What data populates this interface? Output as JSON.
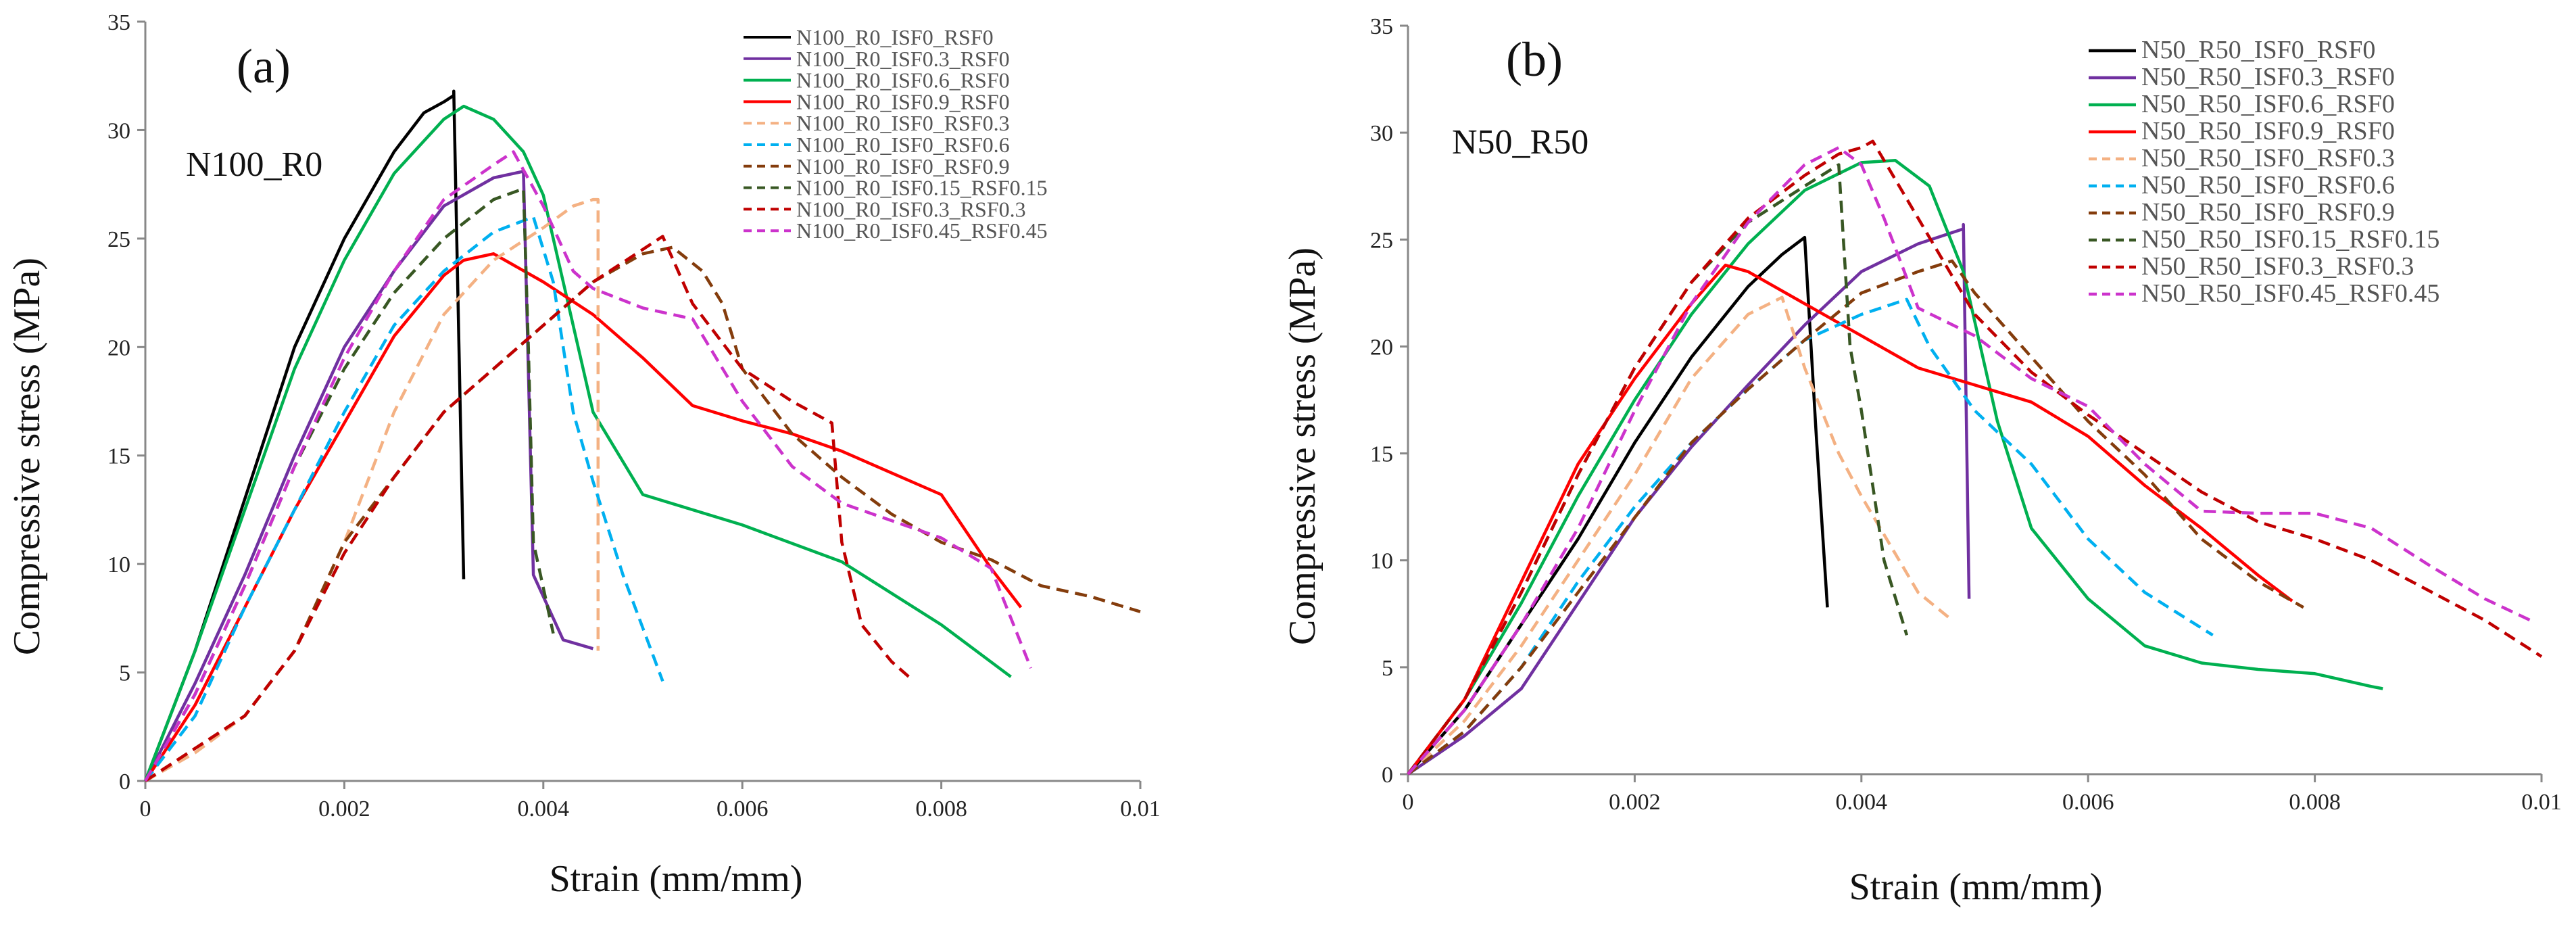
{
  "chart_data": [
    {
      "type": "line",
      "panel_label": "(a)",
      "group_label": "N100_R0",
      "xlabel": "Strain (mm/mm)",
      "ylabel": "Compressive stress (MPa)",
      "xlim": [
        0,
        0.01
      ],
      "ylim": [
        0,
        35
      ],
      "x_ticks": [
        0,
        0.002,
        0.004,
        0.006,
        0.008,
        0.01
      ],
      "x_tick_labels": [
        "0",
        "0.002",
        "0.004",
        "0.006",
        "0.008",
        "0.01"
      ],
      "y_ticks": [
        0,
        5,
        10,
        15,
        20,
        25,
        30,
        35
      ],
      "y_tick_labels": [
        "0",
        "5",
        "10",
        "15",
        "20",
        "25",
        "30",
        "35"
      ],
      "legend_position": "top-right",
      "series": [
        {
          "name": "N100_R0_ISF0_RSF0",
          "color": "#000000",
          "dash": "solid",
          "x": [
            0,
            0.0005,
            0.001,
            0.0015,
            0.002,
            0.0025,
            0.0028,
            0.003,
            0.0031,
            0.0031,
            0.0032
          ],
          "y": [
            0,
            6,
            13,
            20,
            25,
            29,
            30.8,
            31.3,
            31.6,
            31.8,
            9.3
          ]
        },
        {
          "name": "N100_R0_ISF0.3_RSF0",
          "color": "#7030A0",
          "dash": "solid",
          "x": [
            0,
            0.0005,
            0.001,
            0.0015,
            0.002,
            0.0025,
            0.003,
            0.0035,
            0.0038,
            0.0039,
            0.0042,
            0.0045
          ],
          "y": [
            0,
            4.5,
            9.5,
            15,
            20,
            23.5,
            26.5,
            27.8,
            28.1,
            9.5,
            6.5,
            6.1
          ]
        },
        {
          "name": "N100_R0_ISF0.6_RSF0",
          "color": "#00B050",
          "dash": "solid",
          "x": [
            0,
            0.0005,
            0.001,
            0.0015,
            0.002,
            0.0025,
            0.003,
            0.0032,
            0.0035,
            0.0038,
            0.004,
            0.0045,
            0.005,
            0.006,
            0.007,
            0.008,
            0.0087
          ],
          "y": [
            0,
            6,
            12.5,
            19,
            24,
            28,
            30.5,
            31.1,
            30.5,
            29,
            27,
            17,
            13.2,
            11.8,
            10.1,
            7.2,
            4.8
          ]
        },
        {
          "name": "N100_R0_ISF0.9_RSF0",
          "color": "#FF0000",
          "dash": "solid",
          "x": [
            0,
            0.0005,
            0.001,
            0.0015,
            0.002,
            0.0025,
            0.003,
            0.0032,
            0.0035,
            0.004,
            0.0045,
            0.005,
            0.0055,
            0.006,
            0.0065,
            0.007,
            0.0075,
            0.008,
            0.0085,
            0.0088
          ],
          "y": [
            0,
            3.5,
            8,
            12.5,
            16.5,
            20.5,
            23.3,
            24,
            24.3,
            23,
            21.5,
            19.5,
            17.3,
            16.6,
            16,
            15.2,
            14.2,
            13.2,
            9.8,
            8
          ]
        },
        {
          "name": "N100_R0_ISF0_RSF0.3",
          "color": "#F4B183",
          "dash": "dash",
          "x": [
            0,
            0.0005,
            0.001,
            0.0015,
            0.002,
            0.0025,
            0.003,
            0.0035,
            0.004,
            0.0043,
            0.0045,
            0.00455,
            0.00455
          ],
          "y": [
            0,
            1.3,
            3,
            6,
            11,
            17,
            21.5,
            24,
            25.5,
            26.5,
            26.8,
            26.8,
            6
          ]
        },
        {
          "name": "N100_R0_ISF0_RSF0.6",
          "color": "#00B0F0",
          "dash": "dash",
          "x": [
            0,
            0.0005,
            0.001,
            0.0015,
            0.002,
            0.0025,
            0.003,
            0.0035,
            0.0039,
            0.0041,
            0.0043,
            0.0045,
            0.0048,
            0.0052
          ],
          "y": [
            0,
            3,
            8,
            12.5,
            17,
            21,
            23.5,
            25.3,
            26,
            23,
            17,
            13.8,
            9.5,
            4.6
          ]
        },
        {
          "name": "N100_R0_ISF0_RSF0.9",
          "color": "#843C0C",
          "dash": "dash",
          "x": [
            0,
            0.0005,
            0.001,
            0.0015,
            0.002,
            0.0025,
            0.003,
            0.0035,
            0.004,
            0.0045,
            0.005,
            0.0053,
            0.0056,
            0.0058,
            0.006,
            0.0065,
            0.007,
            0.0075,
            0.008,
            0.0085,
            0.009,
            0.0095,
            0.01
          ],
          "y": [
            0,
            1.5,
            3,
            6,
            11,
            14,
            17,
            19,
            21,
            23,
            24.3,
            24.6,
            23.5,
            22,
            19,
            16,
            14,
            12.3,
            11,
            10.2,
            9,
            8.5,
            7.8
          ]
        },
        {
          "name": "N100_R0_ISF0.15_RSF0.15",
          "color": "#385723",
          "dash": "dash",
          "x": [
            0,
            0.0005,
            0.001,
            0.0015,
            0.002,
            0.0025,
            0.003,
            0.0035,
            0.0038,
            0.00385,
            0.0039,
            0.0041
          ],
          "y": [
            0,
            4,
            9,
            14.5,
            19,
            22.5,
            25,
            26.8,
            27.3,
            20,
            11,
            6.8
          ]
        },
        {
          "name": "N100_R0_ISF0.3_RSF0.3",
          "color": "#C00000",
          "dash": "dash",
          "x": [
            0,
            0.0005,
            0.001,
            0.0015,
            0.002,
            0.0025,
            0.003,
            0.0035,
            0.004,
            0.0045,
            0.005,
            0.0052,
            0.0055,
            0.006,
            0.0065,
            0.0069,
            0.007,
            0.0072,
            0.0075,
            0.0077
          ],
          "y": [
            0,
            1.5,
            3,
            6,
            10.5,
            14,
            17,
            19,
            21,
            23,
            24.5,
            25.1,
            22,
            19,
            17.5,
            16.5,
            11,
            7.2,
            5.5,
            4.7
          ]
        },
        {
          "name": "N100_R0_ISF0.45_RSF0.45",
          "color": "#CC33CC",
          "dash": "dash",
          "x": [
            0,
            0.0005,
            0.001,
            0.0015,
            0.002,
            0.0025,
            0.003,
            0.0035,
            0.0037,
            0.004,
            0.0043,
            0.0045,
            0.005,
            0.0055,
            0.006,
            0.0065,
            0.007,
            0.0075,
            0.008,
            0.0085,
            0.0089
          ],
          "y": [
            0,
            4,
            9,
            14.5,
            19.5,
            23.5,
            26.8,
            28.4,
            29,
            26.5,
            23.5,
            22.7,
            21.8,
            21.3,
            17.5,
            14.5,
            12.8,
            12,
            11.2,
            9.8,
            5.2
          ]
        }
      ]
    },
    {
      "type": "line",
      "panel_label": "(b)",
      "group_label": "N50_R50",
      "xlabel": "Strain (mm/mm)",
      "ylabel": "Compressive stress (MPa)",
      "xlim": [
        0,
        0.01
      ],
      "ylim": [
        0,
        35
      ],
      "x_ticks": [
        0,
        0.002,
        0.004,
        0.006,
        0.008,
        0.01
      ],
      "x_tick_labels": [
        "0",
        "0.002",
        "0.004",
        "0.006",
        "0.008",
        "0.01"
      ],
      "y_ticks": [
        0,
        5,
        10,
        15,
        20,
        25,
        30,
        35
      ],
      "y_tick_labels": [
        "0",
        "5",
        "10",
        "15",
        "20",
        "25",
        "30",
        "35"
      ],
      "legend_position": "top-right",
      "series": [
        {
          "name": "N50_R50_ISF0_RSF0",
          "color": "#000000",
          "dash": "solid",
          "x": [
            0,
            0.0005,
            0.001,
            0.0015,
            0.002,
            0.0025,
            0.003,
            0.0033,
            0.0035,
            0.0036,
            0.0037
          ],
          "y": [
            0,
            3,
            7,
            11,
            15.5,
            19.5,
            22.8,
            24.3,
            25.1,
            16,
            7.8
          ]
        },
        {
          "name": "N50_R50_ISF0.3_RSF0",
          "color": "#7030A0",
          "dash": "solid",
          "x": [
            0,
            0.0005,
            0.001,
            0.0015,
            0.002,
            0.0025,
            0.003,
            0.0035,
            0.004,
            0.0045,
            0.0049,
            0.0049,
            0.00495
          ],
          "y": [
            0,
            1.8,
            4,
            8,
            12,
            15.3,
            18.2,
            21,
            23.5,
            24.8,
            25.5,
            25.7,
            8.2
          ]
        },
        {
          "name": "N50_R50_ISF0.6_RSF0",
          "color": "#00B050",
          "dash": "solid",
          "x": [
            0,
            0.0005,
            0.001,
            0.0015,
            0.002,
            0.0025,
            0.003,
            0.0035,
            0.004,
            0.0043,
            0.0046,
            0.0049,
            0.0052,
            0.0055,
            0.006,
            0.0065,
            0.007,
            0.0075,
            0.008,
            0.0085,
            0.0086
          ],
          "y": [
            0,
            3.5,
            8,
            13,
            17.5,
            21.5,
            24.8,
            27.3,
            28.6,
            28.7,
            27.5,
            23.5,
            16.5,
            11.5,
            8.2,
            6,
            5.2,
            4.9,
            4.7,
            4.1,
            4
          ]
        },
        {
          "name": "N50_R50_ISF0.9_RSF0",
          "color": "#FF0000",
          "dash": "solid",
          "x": [
            0,
            0.0005,
            0.001,
            0.0015,
            0.002,
            0.0025,
            0.0028,
            0.003,
            0.0035,
            0.004,
            0.0045,
            0.005,
            0.0055,
            0.006,
            0.0065,
            0.007,
            0.0075,
            0.0078
          ],
          "y": [
            0,
            3.5,
            9,
            14.5,
            18.5,
            22,
            23.8,
            23.5,
            22,
            20.5,
            19,
            18.2,
            17.4,
            15.8,
            13.5,
            11.5,
            9.3,
            8.1
          ]
        },
        {
          "name": "N50_R50_ISF0_RSF0.3",
          "color": "#F4B183",
          "dash": "dash",
          "x": [
            0,
            0.0005,
            0.001,
            0.0015,
            0.002,
            0.0025,
            0.003,
            0.0033,
            0.0035,
            0.0038,
            0.004,
            0.0045,
            0.0048
          ],
          "y": [
            0,
            2.5,
            6,
            10,
            14,
            18.5,
            21.5,
            22.3,
            19,
            15,
            13,
            8.5,
            7.2
          ]
        },
        {
          "name": "N50_R50_ISF0_RSF0.6",
          "color": "#00B0F0",
          "dash": "dash",
          "x": [
            0,
            0.0005,
            0.001,
            0.0015,
            0.002,
            0.0025,
            0.003,
            0.0035,
            0.004,
            0.0044,
            0.0046,
            0.005,
            0.0055,
            0.006,
            0.0065,
            0.0071
          ],
          "y": [
            0,
            2,
            5,
            9,
            12.5,
            15.5,
            18,
            20.3,
            21.5,
            22.2,
            20,
            17,
            14.5,
            11,
            8.5,
            6.5
          ]
        },
        {
          "name": "N50_R50_ISF0_RSF0.9",
          "color": "#843C0C",
          "dash": "dash",
          "x": [
            0,
            0.0005,
            0.001,
            0.0015,
            0.002,
            0.0025,
            0.003,
            0.0035,
            0.004,
            0.0045,
            0.0048,
            0.005,
            0.0055,
            0.006,
            0.0065,
            0.007,
            0.0075,
            0.0079
          ],
          "y": [
            0,
            2,
            5,
            8.5,
            12,
            15.5,
            18,
            20.3,
            22.5,
            23.5,
            24,
            22.5,
            19.5,
            16.5,
            14,
            11,
            9,
            7.8
          ]
        },
        {
          "name": "N50_R50_ISF0.15_RSF0.15",
          "color": "#385723",
          "dash": "dash",
          "x": [
            0,
            0.0005,
            0.001,
            0.0015,
            0.002,
            0.0025,
            0.003,
            0.0035,
            0.0038,
            0.0039,
            0.004,
            0.0042,
            0.0044
          ],
          "y": [
            0,
            3.5,
            8.5,
            14,
            19,
            23,
            25.8,
            27.5,
            28.5,
            20,
            17,
            10,
            6.5
          ]
        },
        {
          "name": "N50_R50_ISF0.3_RSF0.3",
          "color": "#C00000",
          "dash": "dash",
          "x": [
            0,
            0.0005,
            0.001,
            0.0015,
            0.002,
            0.0025,
            0.003,
            0.0035,
            0.0038,
            0.004,
            0.0041,
            0.0045,
            0.005,
            0.0055,
            0.006,
            0.0065,
            0.007,
            0.0075,
            0.008,
            0.0085,
            0.009,
            0.0095,
            0.01
          ],
          "y": [
            0,
            3.5,
            8.5,
            14,
            19,
            23,
            26,
            28,
            29,
            29.3,
            29.6,
            26,
            21.5,
            18.8,
            16.8,
            15,
            13.2,
            11.8,
            11,
            10,
            8.6,
            7.2,
            5.5
          ]
        },
        {
          "name": "N50_R50_ISF0.45_RSF0.45",
          "color": "#CC33CC",
          "dash": "dash",
          "x": [
            0,
            0.0005,
            0.001,
            0.0015,
            0.002,
            0.0025,
            0.003,
            0.0035,
            0.0038,
            0.004,
            0.0042,
            0.0045,
            0.005,
            0.0055,
            0.006,
            0.0065,
            0.007,
            0.0075,
            0.008,
            0.0085,
            0.009,
            0.0095,
            0.0099
          ],
          "y": [
            0,
            3,
            7,
            11.5,
            17,
            22,
            25.8,
            28.5,
            29.3,
            28.5,
            26,
            21.8,
            20.5,
            18.5,
            17.2,
            14.5,
            12.3,
            12.2,
            12.2,
            11.5,
            9.8,
            8.2,
            7.2
          ]
        }
      ]
    }
  ]
}
